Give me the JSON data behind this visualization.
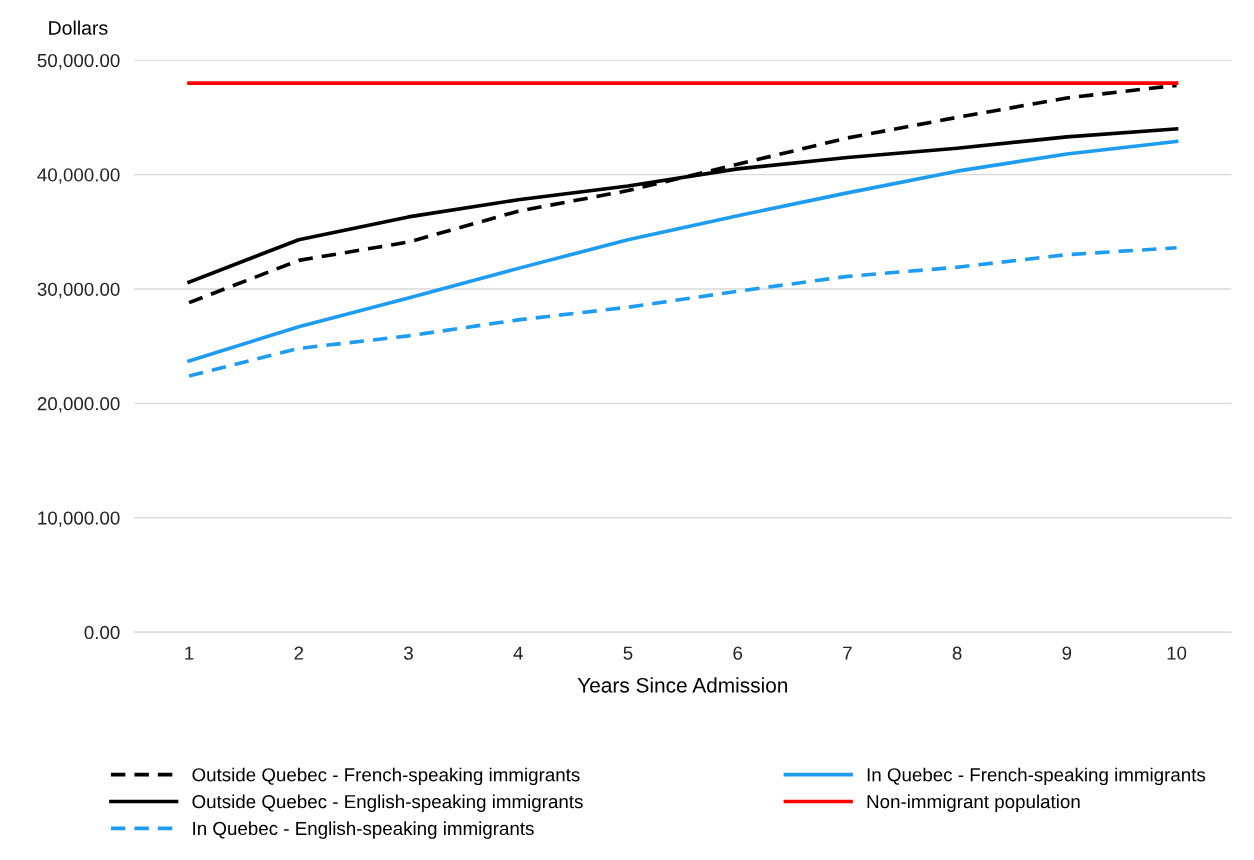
{
  "chart_data": {
    "type": "line",
    "xlabel": "Years Since Admission",
    "ylabel": "Dollars",
    "categories": [
      "1",
      "2",
      "3",
      "4",
      "5",
      "6",
      "7",
      "8",
      "9",
      "10"
    ],
    "series": [
      {
        "name": "Outside Quebec - French-speaking immigrants",
        "color": "#000000",
        "line_style": "dashed",
        "values": [
          28800,
          32500,
          34100,
          36800,
          38600,
          40900,
          43200,
          45000,
          46700,
          47800
        ]
      },
      {
        "name": "Outside Quebec - English-speaking immigrants",
        "color": "#000000",
        "line_style": "solid",
        "values": [
          30600,
          34300,
          36300,
          37800,
          39000,
          40500,
          41500,
          42300,
          43300,
          44000
        ]
      },
      {
        "name": "In Quebec - English-speaking immigrants",
        "color": "#1e9cf0",
        "line_style": "dashed",
        "values": [
          22400,
          24800,
          25900,
          27300,
          28400,
          29800,
          31100,
          31900,
          33000,
          33600
        ]
      },
      {
        "name": "In Quebec - French-speaking immigrants",
        "color": "#1e9cf0",
        "line_style": "solid",
        "values": [
          23700,
          26700,
          29200,
          31800,
          34300,
          36400,
          38400,
          40300,
          41800,
          42900
        ]
      },
      {
        "name": "Non-immigrant population",
        "color": "#ff0000",
        "line_style": "solid",
        "values": [
          48000,
          48000,
          48000,
          48000,
          48000,
          48000,
          48000,
          48000,
          48000,
          48000
        ]
      }
    ],
    "ylim": [
      0,
      50000
    ],
    "yticks": [
      {
        "value": 0,
        "label": "0.00"
      },
      {
        "value": 10000,
        "label": "10,000.00"
      },
      {
        "value": 20000,
        "label": "20,000.00"
      },
      {
        "value": 30000,
        "label": "30,000.00"
      },
      {
        "value": 40000,
        "label": "40,000.00"
      },
      {
        "value": 50000,
        "label": "50,000.00"
      }
    ],
    "grid": "y",
    "legend": "bottom",
    "marker": "none"
  }
}
